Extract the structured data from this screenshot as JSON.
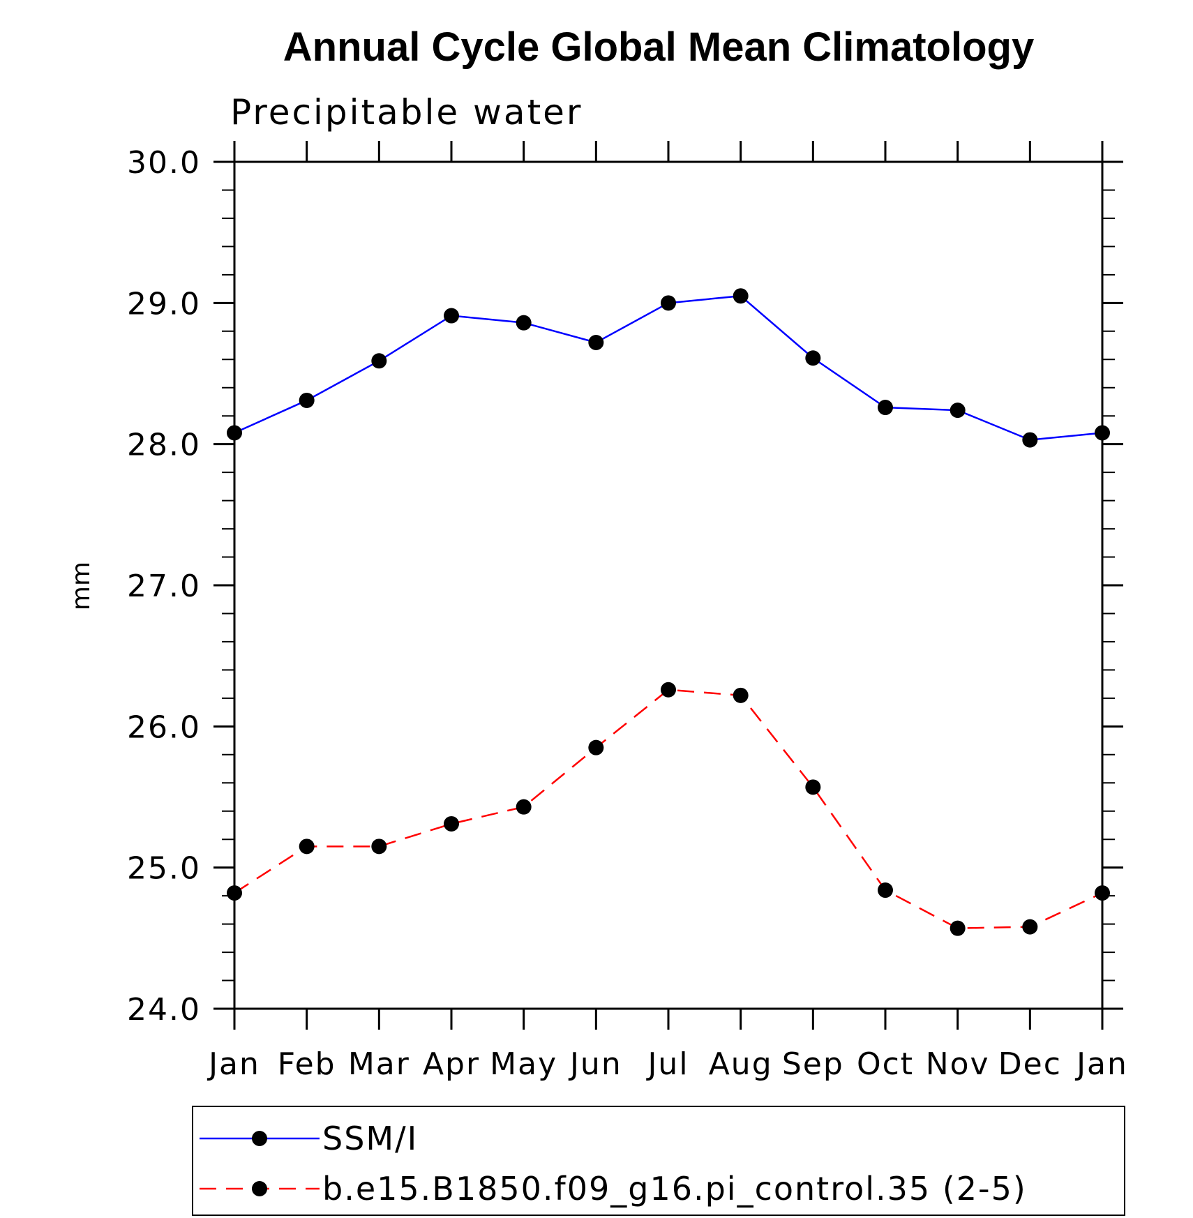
{
  "chart_data": {
    "type": "line",
    "title": "Annual Cycle Global Mean Climatology",
    "subtitle": "Precipitable water",
    "xlabel": "",
    "ylabel": "mm",
    "categories": [
      "Jan",
      "Feb",
      "Mar",
      "Apr",
      "May",
      "Jun",
      "Jul",
      "Aug",
      "Sep",
      "Oct",
      "Nov",
      "Dec",
      "Jan"
    ],
    "ylim": [
      24.0,
      30.0
    ],
    "yticks": [
      "24.0",
      "25.0",
      "26.0",
      "27.0",
      "28.0",
      "29.0",
      "30.0"
    ],
    "grid": false,
    "legend_position": "bottom",
    "series": [
      {
        "name": "SSM/I",
        "color": "#0000ff",
        "line_style": "solid",
        "marker": "filled-circle",
        "values": [
          28.08,
          28.31,
          28.59,
          28.91,
          28.86,
          28.72,
          29.0,
          29.05,
          28.61,
          28.26,
          28.24,
          28.03,
          28.08
        ]
      },
      {
        "name": "b.e15.B1850.f09_g16.pi_control.35 (2-5)",
        "color": "#ff0000",
        "line_style": "dashed",
        "marker": "filled-circle",
        "values": [
          24.82,
          25.15,
          25.15,
          25.31,
          25.43,
          25.85,
          26.26,
          26.22,
          25.57,
          24.84,
          24.57,
          24.58,
          24.82
        ]
      }
    ]
  }
}
